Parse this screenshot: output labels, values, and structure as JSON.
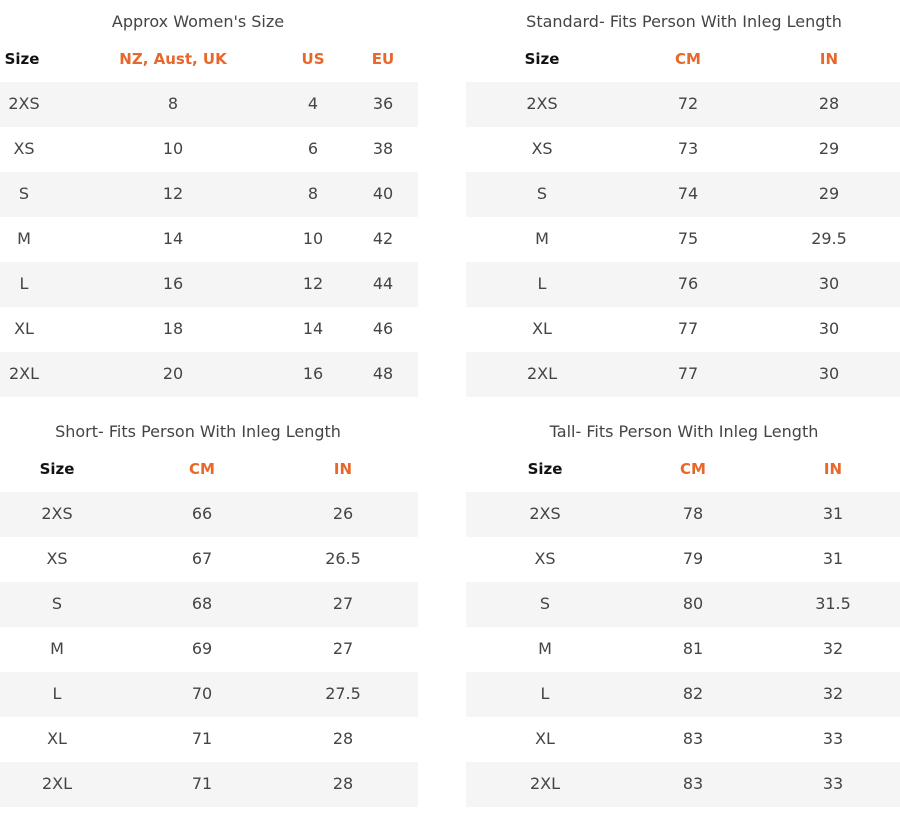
{
  "colors": {
    "accent": "#e8672a",
    "header_dark": "#111111",
    "stripe": "#f5f5f5"
  },
  "tables": [
    {
      "title": "Approx Women's Size",
      "headers": [
        "Size",
        "NZ, Aust, UK",
        "US",
        "EU"
      ],
      "rows": [
        [
          "2XS",
          "8",
          "4",
          "36"
        ],
        [
          "XS",
          "10",
          "6",
          "38"
        ],
        [
          "S",
          "12",
          "8",
          "40"
        ],
        [
          "M",
          "14",
          "10",
          "42"
        ],
        [
          "L",
          "16",
          "12",
          "44"
        ],
        [
          "XL",
          "18",
          "14",
          "46"
        ],
        [
          "2XL",
          "20",
          "16",
          "48"
        ]
      ]
    },
    {
      "title": "Standard- Fits Person With Inleg Length",
      "headers": [
        "Size",
        "CM",
        "IN"
      ],
      "rows": [
        [
          "2XS",
          "72",
          "28"
        ],
        [
          "XS",
          "73",
          "29"
        ],
        [
          "S",
          "74",
          "29"
        ],
        [
          "M",
          "75",
          "29.5"
        ],
        [
          "L",
          "76",
          "30"
        ],
        [
          "XL",
          "77",
          "30"
        ],
        [
          "2XL",
          "77",
          "30"
        ]
      ]
    },
    {
      "title": "Short- Fits Person With Inleg Length",
      "headers": [
        "Size",
        "CM",
        "IN"
      ],
      "rows": [
        [
          "2XS",
          "66",
          "26"
        ],
        [
          "XS",
          "67",
          "26.5"
        ],
        [
          "S",
          "68",
          "27"
        ],
        [
          "M",
          "69",
          "27"
        ],
        [
          "L",
          "70",
          "27.5"
        ],
        [
          "XL",
          "71",
          "28"
        ],
        [
          "2XL",
          "71",
          "28"
        ]
      ]
    },
    {
      "title": "Tall- Fits Person With Inleg Length",
      "headers": [
        "Size",
        "CM",
        "IN"
      ],
      "rows": [
        [
          "2XS",
          "78",
          "31"
        ],
        [
          "XS",
          "79",
          "31"
        ],
        [
          "S",
          "80",
          "31.5"
        ],
        [
          "M",
          "81",
          "32"
        ],
        [
          "L",
          "82",
          "32"
        ],
        [
          "XL",
          "83",
          "33"
        ],
        [
          "2XL",
          "83",
          "33"
        ]
      ]
    }
  ]
}
